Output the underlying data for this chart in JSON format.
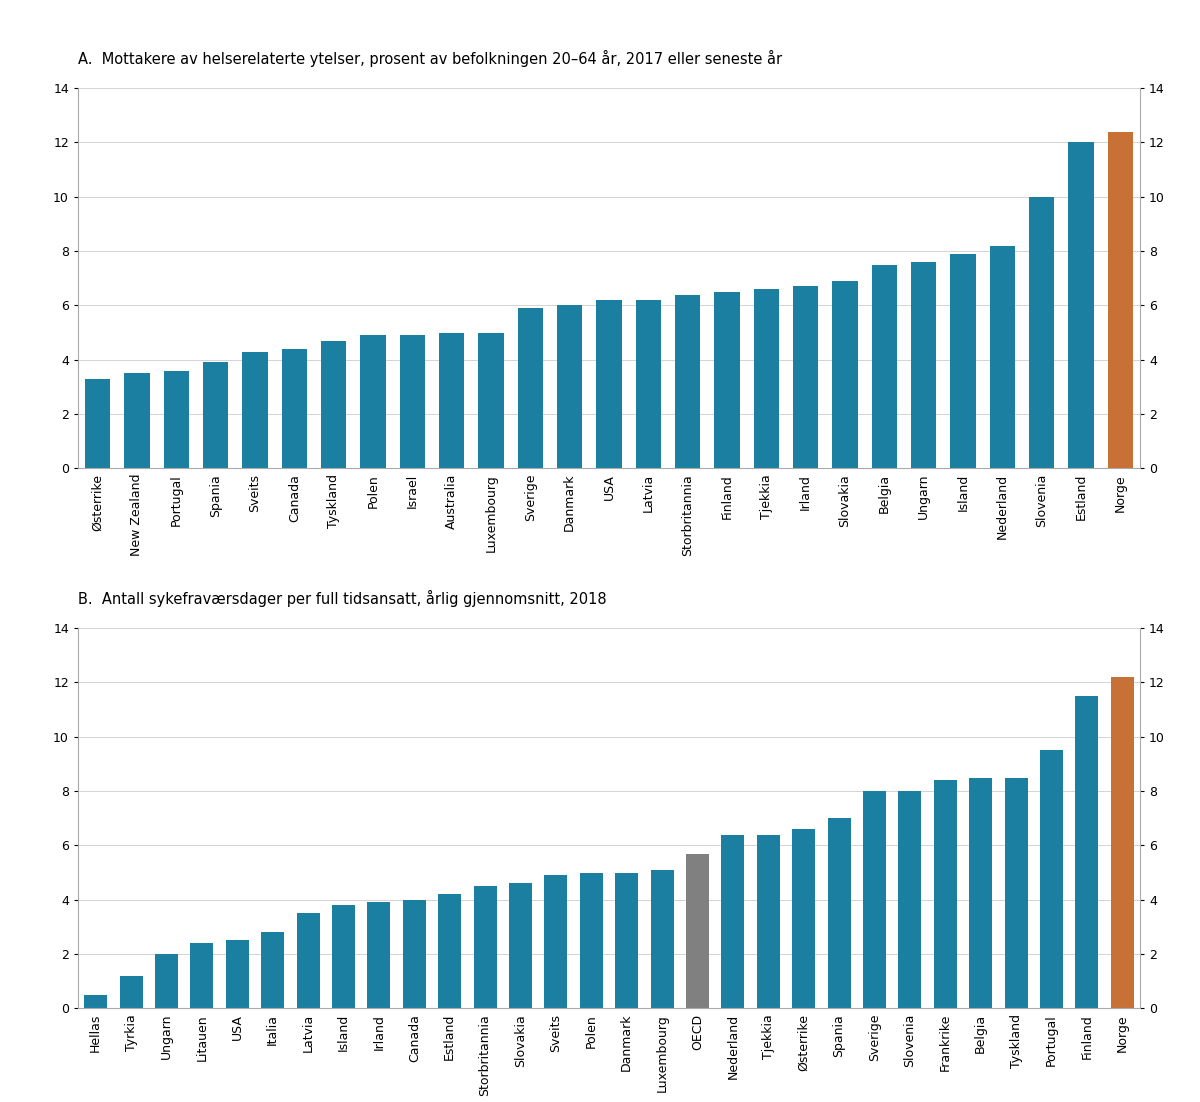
{
  "panel_a": {
    "title": "A.  Mottakere av helserelaterte ytelser, prosent av befolkningen 20–64 år, 2017 eller seneste år",
    "categories": [
      "Østerrike",
      "New Zealand",
      "Portugal",
      "Spania",
      "Sveits",
      "Canada",
      "Tyskland",
      "Polen",
      "Israel",
      "Australia",
      "Luxembourg",
      "Sverige",
      "Danmark",
      "USA",
      "Latvia",
      "Storbritannia",
      "Finland",
      "Tjekkia",
      "Irland",
      "Slovakia",
      "Belgia",
      "Ungarn",
      "Island",
      "Nederland",
      "Slovenia",
      "Estland",
      "Norge"
    ],
    "values": [
      3.3,
      3.5,
      3.6,
      3.9,
      4.3,
      4.4,
      4.7,
      4.9,
      4.9,
      5.0,
      5.0,
      5.9,
      6.0,
      6.2,
      6.2,
      6.4,
      6.5,
      6.6,
      6.7,
      6.9,
      7.5,
      7.6,
      7.9,
      8.2,
      10.0,
      12.0,
      12.4
    ],
    "colors_type": [
      "blue",
      "blue",
      "blue",
      "blue",
      "blue",
      "blue",
      "blue",
      "blue",
      "blue",
      "blue",
      "blue",
      "blue",
      "blue",
      "blue",
      "blue",
      "blue",
      "blue",
      "blue",
      "blue",
      "blue",
      "blue",
      "blue",
      "blue",
      "blue",
      "blue",
      "blue",
      "orange"
    ],
    "ylim": [
      0,
      14
    ],
    "yticks": [
      0,
      2,
      4,
      6,
      8,
      10,
      12,
      14
    ]
  },
  "panel_b": {
    "title": "B.  Antall sykefraværsdager per full tidsansatt, årlig gjennomsnitt, 2018",
    "categories": [
      "Hellas",
      "Tyrkia",
      "Ungarn",
      "Litauen",
      "USA",
      "Italia",
      "Latvia",
      "Island",
      "Irland",
      "Canada",
      "Estland",
      "Storbritannia",
      "Slovakia",
      "Sveits",
      "Polen",
      "Danmark",
      "Luxembourg",
      "OECD",
      "Nederland",
      "Tjekkia",
      "Østerrike",
      "Spania",
      "Sverige",
      "Slovenia",
      "Frankrike",
      "Belgia",
      "Tyskland",
      "Portugal",
      "Finland",
      "Norge"
    ],
    "values": [
      0.5,
      1.2,
      2.0,
      2.4,
      2.5,
      2.8,
      3.5,
      3.8,
      3.9,
      4.0,
      4.2,
      4.5,
      4.6,
      4.9,
      5.0,
      5.0,
      5.1,
      5.7,
      6.4,
      6.4,
      6.6,
      7.0,
      8.0,
      8.0,
      8.4,
      8.5,
      8.5,
      9.5,
      11.5,
      12.2
    ],
    "colors_type": [
      "blue",
      "blue",
      "blue",
      "blue",
      "blue",
      "blue",
      "blue",
      "blue",
      "blue",
      "blue",
      "blue",
      "blue",
      "blue",
      "blue",
      "blue",
      "blue",
      "blue",
      "gray",
      "blue",
      "blue",
      "blue",
      "blue",
      "blue",
      "blue",
      "blue",
      "blue",
      "blue",
      "blue",
      "blue",
      "orange"
    ],
    "ylim": [
      0,
      14
    ],
    "yticks": [
      0,
      2,
      4,
      6,
      8,
      10,
      12,
      14
    ]
  },
  "blue_color": "#1a7fa0",
  "orange_color": "#c87137",
  "gray_color": "#808080",
  "title_fontsize": 10.5,
  "tick_fontsize": 9,
  "bar_width": 0.65
}
